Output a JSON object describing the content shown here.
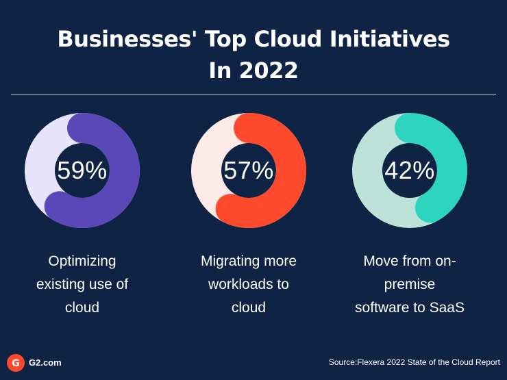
{
  "header": {
    "title_line1": "Businesses' Top Cloud Initiatives",
    "title_line2": "In 2022"
  },
  "chart_data": {
    "type": "pie",
    "title": "Businesses' Top Cloud Initiatives In 2022",
    "items": [
      {
        "label": "59%",
        "value": 59,
        "caption_lines": [
          "Optimizing",
          "existing use of",
          "cloud"
        ],
        "color": "#5a47b8",
        "track_color": "#e7e3fb"
      },
      {
        "label": "57%",
        "value": 57,
        "caption_lines": [
          "Migrating more",
          "workloads to",
          "cloud"
        ],
        "color": "#ff4a2e",
        "track_color": "#fde9e6"
      },
      {
        "label": "42%",
        "value": 42,
        "caption_lines": [
          "Move from on-",
          "premise",
          "software to SaaS"
        ],
        "color": "#2dd4bf",
        "track_color": "#bde3d8"
      }
    ]
  },
  "colors": {
    "background": "#0f2444",
    "divider": "#c9ced8",
    "logo": "#ff492c"
  },
  "footer": {
    "logo_text": "G2.com",
    "source": "Source:Flexera 2022 State of the Cloud Report"
  }
}
